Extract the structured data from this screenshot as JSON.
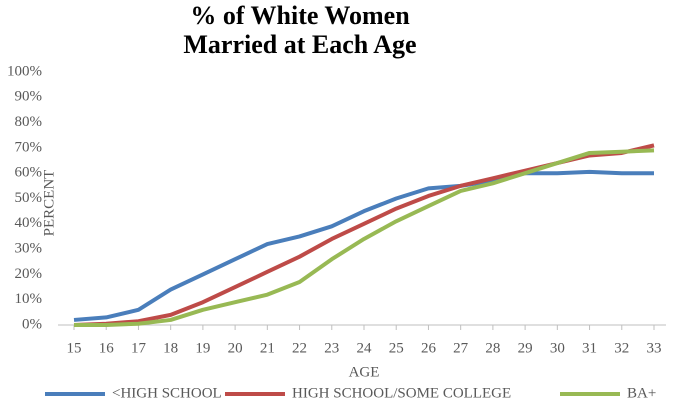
{
  "chart_data": {
    "type": "line",
    "title": [
      "% of White Women",
      "Married at Each Age"
    ],
    "x_label": "AGE",
    "y_label": "PERCENT",
    "x": [
      15,
      16,
      17,
      18,
      19,
      20,
      21,
      22,
      23,
      24,
      25,
      26,
      27,
      28,
      29,
      30,
      31,
      32,
      33
    ],
    "xlim": [
      15,
      33
    ],
    "xticks": [
      15,
      16,
      17,
      18,
      19,
      20,
      21,
      22,
      23,
      24,
      25,
      26,
      27,
      28,
      29,
      30,
      31,
      32,
      33
    ],
    "ylim": [
      0,
      100
    ],
    "yticks": [
      {
        "value": 0,
        "label": "0%"
      },
      {
        "value": 10,
        "label": "10%"
      },
      {
        "value": 20,
        "label": "20%"
      },
      {
        "value": 30,
        "label": "30%"
      },
      {
        "value": 40,
        "label": "40%"
      },
      {
        "value": 50,
        "label": "50%"
      },
      {
        "value": 60,
        "label": "60%"
      },
      {
        "value": 70,
        "label": "70%"
      },
      {
        "value": 80,
        "label": "80%"
      },
      {
        "value": 90,
        "label": "90%"
      },
      {
        "value": 100,
        "label": "100%"
      }
    ],
    "grid": false,
    "legend": "bottom",
    "series": [
      {
        "name": "<HIGH SCHOOL",
        "color": "#4a7ebb",
        "values": [
          2,
          3,
          6,
          14,
          20,
          26,
          32,
          35,
          39,
          45,
          50,
          54,
          55,
          57,
          60,
          60,
          60.5,
          60,
          60
        ]
      },
      {
        "name": "HIGH SCHOOL/SOME COLLEGE",
        "color": "#be4b48",
        "values": [
          0,
          0.5,
          1.5,
          4,
          9,
          15,
          21,
          27,
          34,
          40,
          46,
          51,
          55,
          58,
          61,
          64,
          67,
          68,
          71
        ]
      },
      {
        "name": "BA+",
        "color": "#98b954",
        "values": [
          0,
          0,
          0.5,
          2,
          6,
          9,
          12,
          17,
          26,
          34,
          41,
          47,
          53,
          56,
          60,
          64,
          68,
          68.5,
          69
        ]
      }
    ]
  }
}
